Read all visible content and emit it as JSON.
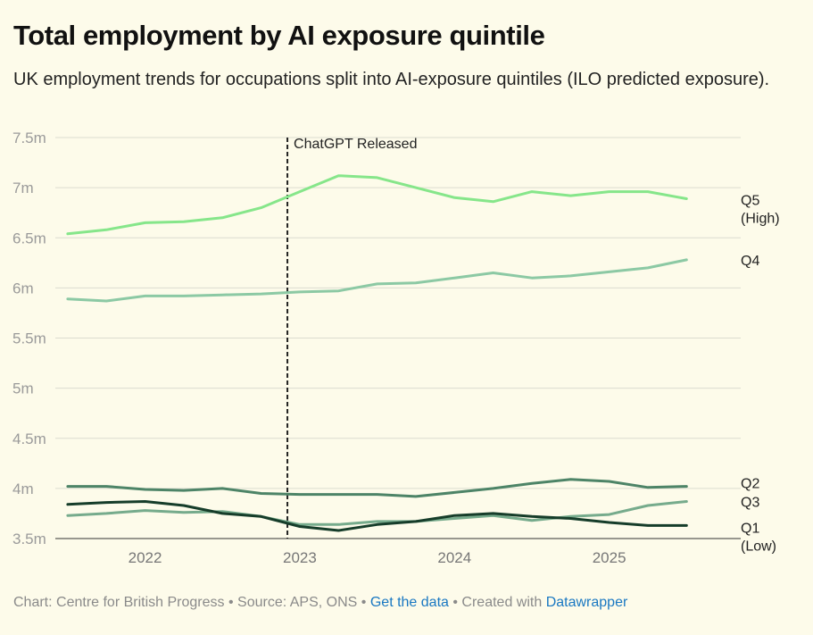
{
  "title": "Total employment by AI exposure quintile",
  "subtitle": "UK employment trends for occupations split into AI-exposure quintiles (ILO predicted exposure).",
  "footer": {
    "chart_credit": "Chart: Centre for British Progress",
    "source": "Source: APS, ONS",
    "get_data": "Get the data",
    "created_with": "Created with",
    "datawrapper": "Datawrapper",
    "separator": "•"
  },
  "colors": {
    "background": "#fdfbea",
    "grid": "#dcdcd0",
    "q5": "#86e68a",
    "q4": "#8cc9a4",
    "q3": "#76ab8c",
    "q2": "#4d8467",
    "q1": "#163d2a",
    "annotation": "#222222"
  },
  "chart_data": {
    "type": "line",
    "title": "Total employment by AI exposure quintile",
    "xlabel": "",
    "ylabel": "",
    "x_ticks": [
      "2022",
      "2023",
      "2024",
      "2025"
    ],
    "x_tick_values": [
      2022.0,
      2023.0,
      2024.0,
      2025.0
    ],
    "xlim": [
      2021.42,
      2025.85
    ],
    "ylim": [
      3.5,
      7.5
    ],
    "y_ticks": [
      3.5,
      4,
      4.5,
      5,
      5.5,
      6,
      6.5,
      7,
      7.5
    ],
    "y_tick_labels": [
      "3.5m",
      "4m",
      "4.5m",
      "5m",
      "5.5m",
      "6m",
      "6.5m",
      "7m",
      "7.5m"
    ],
    "grid": true,
    "legend": "direct labels at right end of lines",
    "x": [
      2021.5,
      2021.75,
      2022.0,
      2022.25,
      2022.5,
      2022.75,
      2023.0,
      2023.25,
      2023.5,
      2023.75,
      2024.0,
      2024.25,
      2024.5,
      2024.75,
      2025.0,
      2025.25,
      2025.5
    ],
    "annotations": [
      {
        "label": "ChatGPT Released",
        "x": 2022.92,
        "style": "dashed-vertical-line"
      }
    ],
    "series": [
      {
        "name": "Q5",
        "label_lines": [
          "Q5",
          "(High)"
        ],
        "color_key": "q5",
        "values": [
          6.54,
          6.58,
          6.65,
          6.66,
          6.7,
          6.8,
          6.96,
          7.12,
          7.1,
          7.0,
          6.9,
          6.86,
          6.96,
          6.92,
          6.96,
          6.96,
          6.89
        ]
      },
      {
        "name": "Q4",
        "label_lines": [
          "Q4"
        ],
        "color_key": "q4",
        "values": [
          5.89,
          5.87,
          5.92,
          5.92,
          5.93,
          5.94,
          5.96,
          5.97,
          6.04,
          6.05,
          6.1,
          6.15,
          6.1,
          6.12,
          6.16,
          6.2,
          6.28
        ]
      },
      {
        "name": "Q3",
        "label_lines": [
          "Q3"
        ],
        "color_key": "q3",
        "values": [
          3.73,
          3.75,
          3.78,
          3.76,
          3.77,
          3.72,
          3.64,
          3.64,
          3.67,
          3.67,
          3.7,
          3.73,
          3.68,
          3.72,
          3.74,
          3.83,
          3.87
        ]
      },
      {
        "name": "Q2",
        "label_lines": [
          "Q2"
        ],
        "color_key": "q2",
        "values": [
          4.02,
          4.02,
          3.99,
          3.98,
          4.0,
          3.95,
          3.94,
          3.94,
          3.94,
          3.92,
          3.96,
          4.0,
          4.05,
          4.09,
          4.07,
          4.01,
          4.02
        ]
      },
      {
        "name": "Q1",
        "label_lines": [
          "Q1",
          "(Low)"
        ],
        "color_key": "q1",
        "values": [
          3.84,
          3.86,
          3.87,
          3.83,
          3.75,
          3.72,
          3.62,
          3.58,
          3.64,
          3.67,
          3.73,
          3.75,
          3.72,
          3.7,
          3.66,
          3.63,
          3.63
        ]
      }
    ]
  }
}
